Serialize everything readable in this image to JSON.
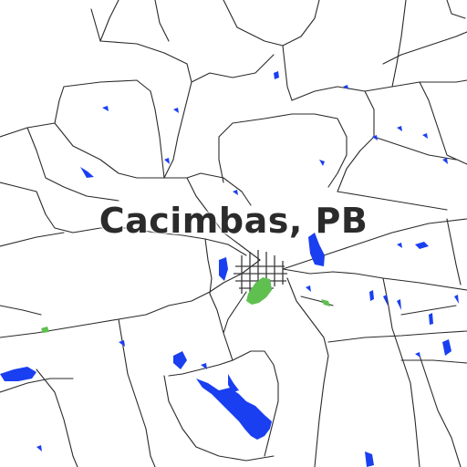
{
  "map": {
    "place_label": "Cacimbas, PB",
    "colors": {
      "background": "#ffffff",
      "roads": "#2a2a2a",
      "water": "#1a3ff0",
      "park": "#5fc04f"
    }
  }
}
